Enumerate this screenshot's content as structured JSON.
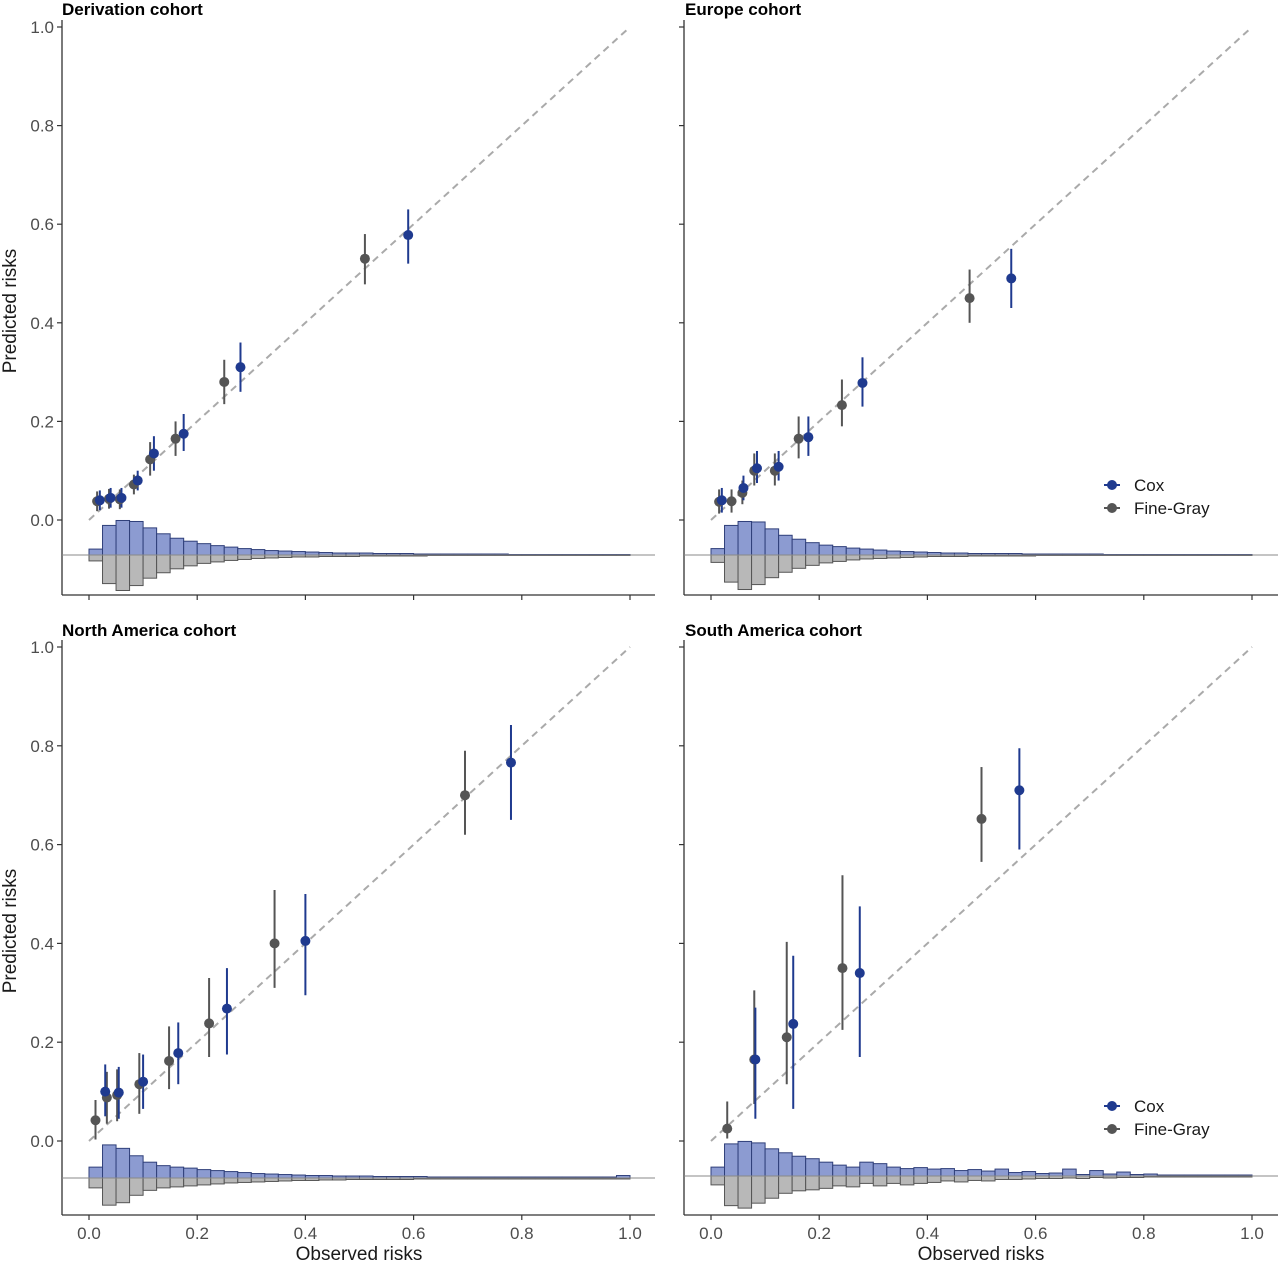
{
  "chart_data": [
    {
      "type": "scatter",
      "title": "Derivation cohort",
      "xlabel": "",
      "ylabel": "Predicted risks",
      "xlim": [
        0,
        1
      ],
      "ylim": [
        -0.1,
        1.0
      ],
      "xticks": [],
      "yticks": [
        "0.0",
        "0.2",
        "0.4",
        "0.6",
        "0.8",
        "1.0"
      ],
      "show_legend": false,
      "series": [
        {
          "name": "Cox",
          "color": "#1f3a8f",
          "x": [
            0.02,
            0.04,
            0.06,
            0.09,
            0.12,
            0.175,
            0.28,
            0.59
          ],
          "y": [
            0.04,
            0.045,
            0.045,
            0.08,
            0.135,
            0.175,
            0.31,
            0.578
          ],
          "lower": [
            0.02,
            0.025,
            0.025,
            0.06,
            0.1,
            0.14,
            0.26,
            0.52
          ],
          "upper": [
            0.06,
            0.065,
            0.065,
            0.1,
            0.17,
            0.215,
            0.36,
            0.63
          ]
        },
        {
          "name": "Fine-Gray",
          "color": "#555555",
          "x": [
            0.015,
            0.037,
            0.057,
            0.083,
            0.113,
            0.16,
            0.25,
            0.51
          ],
          "y": [
            0.038,
            0.043,
            0.042,
            0.072,
            0.123,
            0.165,
            0.28,
            0.53
          ],
          "lower": [
            0.018,
            0.023,
            0.022,
            0.052,
            0.09,
            0.13,
            0.235,
            0.478
          ],
          "upper": [
            0.058,
            0.063,
            0.062,
            0.092,
            0.158,
            0.2,
            0.325,
            0.58
          ]
        }
      ],
      "hist_top": [
        0.012,
        0.06,
        0.07,
        0.068,
        0.055,
        0.043,
        0.034,
        0.028,
        0.023,
        0.019,
        0.016,
        0.013,
        0.011,
        0.009,
        0.008,
        0.007,
        0.006,
        0.005,
        0.004,
        0.004,
        0.004,
        0.003,
        0.003,
        0.003,
        0.002,
        0.002,
        0.002,
        0.002,
        0.002,
        0.002,
        0.002,
        0.001,
        0.001,
        0.001,
        0.001,
        0.001,
        0.001,
        0.001,
        0.001,
        0.001
      ],
      "hist_bottom": [
        0.012,
        0.058,
        0.072,
        0.062,
        0.047,
        0.036,
        0.028,
        0.022,
        0.017,
        0.014,
        0.011,
        0.009,
        0.007,
        0.006,
        0.005,
        0.004,
        0.004,
        0.003,
        0.003,
        0.003,
        0.002,
        0.002,
        0.002,
        0.002,
        0.002,
        0.001,
        0.001,
        0.001,
        0.001,
        0.001,
        0.001,
        0.001,
        0.001,
        0.001,
        0.001,
        0.001,
        0.001,
        0.001,
        0.001,
        0.001
      ]
    },
    {
      "type": "scatter",
      "title": "Europe cohort",
      "xlabel": "",
      "ylabel": "",
      "xlim": [
        0,
        1
      ],
      "ylim": [
        -0.1,
        1.0
      ],
      "xticks": [],
      "yticks": [],
      "show_legend": true,
      "legend_position": "right",
      "series": [
        {
          "name": "Cox",
          "color": "#1f3a8f",
          "x": [
            0.02,
            0.06,
            0.085,
            0.125,
            0.18,
            0.28,
            0.555
          ],
          "y": [
            0.04,
            0.065,
            0.105,
            0.108,
            0.168,
            0.278,
            0.49
          ],
          "lower": [
            0.015,
            0.04,
            0.075,
            0.08,
            0.13,
            0.23,
            0.43
          ],
          "upper": [
            0.065,
            0.09,
            0.14,
            0.14,
            0.21,
            0.33,
            0.55
          ]
        },
        {
          "name": "Fine-Gray",
          "color": "#555555",
          "x": [
            0.015,
            0.038,
            0.058,
            0.08,
            0.118,
            0.162,
            0.242,
            0.478
          ],
          "y": [
            0.037,
            0.038,
            0.055,
            0.1,
            0.1,
            0.165,
            0.233,
            0.45
          ],
          "lower": [
            0.013,
            0.015,
            0.032,
            0.07,
            0.07,
            0.125,
            0.19,
            0.4
          ],
          "upper": [
            0.062,
            0.062,
            0.08,
            0.135,
            0.135,
            0.21,
            0.285,
            0.508
          ]
        }
      ],
      "hist_top": [
        0.013,
        0.06,
        0.068,
        0.067,
        0.053,
        0.04,
        0.032,
        0.025,
        0.02,
        0.017,
        0.014,
        0.012,
        0.01,
        0.008,
        0.007,
        0.006,
        0.005,
        0.004,
        0.004,
        0.003,
        0.003,
        0.003,
        0.003,
        0.002,
        0.002,
        0.002,
        0.002,
        0.002,
        0.002,
        0.001,
        0.001,
        0.001,
        0.001,
        0.001,
        0.001,
        0.001,
        0.001,
        0.001,
        0.001,
        0.001
      ],
      "hist_bottom": [
        0.015,
        0.055,
        0.07,
        0.06,
        0.046,
        0.035,
        0.027,
        0.021,
        0.016,
        0.013,
        0.01,
        0.008,
        0.007,
        0.006,
        0.005,
        0.004,
        0.003,
        0.003,
        0.003,
        0.002,
        0.002,
        0.002,
        0.002,
        0.002,
        0.001,
        0.001,
        0.001,
        0.001,
        0.001,
        0.001,
        0.001,
        0.001,
        0.001,
        0.001,
        0.001,
        0.001,
        0.001,
        0.001,
        0.001,
        0.001
      ]
    },
    {
      "type": "scatter",
      "title": "North America cohort",
      "xlabel": "Observed risks",
      "ylabel": "Predicted risks",
      "xlim": [
        0,
        1
      ],
      "ylim": [
        -0.15,
        1.0
      ],
      "xticks": [
        "0.0",
        "0.2",
        "0.4",
        "0.6",
        "0.8",
        "1.0"
      ],
      "yticks": [
        "0.0",
        "0.2",
        "0.4",
        "0.6",
        "0.8",
        "1.0"
      ],
      "show_legend": false,
      "series": [
        {
          "name": "Cox",
          "color": "#1f3a8f",
          "x": [
            0.03,
            0.055,
            0.1,
            0.165,
            0.255,
            0.4,
            0.78
          ],
          "y": [
            0.1,
            0.098,
            0.12,
            0.178,
            0.268,
            0.405,
            0.766
          ],
          "lower": [
            0.05,
            0.045,
            0.065,
            0.115,
            0.175,
            0.295,
            0.65
          ],
          "upper": [
            0.155,
            0.15,
            0.175,
            0.24,
            0.35,
            0.5,
            0.842
          ]
        },
        {
          "name": "Fine-Gray",
          "color": "#555555",
          "x": [
            0.012,
            0.033,
            0.052,
            0.093,
            0.148,
            0.222,
            0.343,
            0.695
          ],
          "y": [
            0.042,
            0.088,
            0.093,
            0.115,
            0.162,
            0.238,
            0.4,
            0.7
          ],
          "lower": [
            0.003,
            0.035,
            0.04,
            0.055,
            0.105,
            0.17,
            0.31,
            0.62
          ],
          "upper": [
            0.083,
            0.14,
            0.145,
            0.178,
            0.232,
            0.33,
            0.508,
            0.79
          ]
        }
      ],
      "hist_top": [
        0.022,
        0.067,
        0.06,
        0.045,
        0.032,
        0.025,
        0.022,
        0.02,
        0.017,
        0.015,
        0.013,
        0.011,
        0.009,
        0.008,
        0.007,
        0.006,
        0.005,
        0.005,
        0.004,
        0.004,
        0.004,
        0.003,
        0.003,
        0.003,
        0.003,
        0.002,
        0.002,
        0.002,
        0.002,
        0.002,
        0.002,
        0.002,
        0.002,
        0.002,
        0.002,
        0.002,
        0.002,
        0.002,
        0.002,
        0.005
      ],
      "hist_bottom": [
        0.02,
        0.055,
        0.05,
        0.035,
        0.025,
        0.02,
        0.018,
        0.016,
        0.014,
        0.012,
        0.01,
        0.009,
        0.008,
        0.007,
        0.006,
        0.005,
        0.005,
        0.004,
        0.004,
        0.003,
        0.003,
        0.003,
        0.003,
        0.003,
        0.002,
        0.002,
        0.002,
        0.002,
        0.002,
        0.002,
        0.002,
        0.002,
        0.002,
        0.002,
        0.002,
        0.002,
        0.002,
        0.002,
        0.002,
        0.002
      ]
    },
    {
      "type": "scatter",
      "title": "South America cohort",
      "xlabel": "Observed risks",
      "ylabel": "",
      "xlim": [
        0,
        1
      ],
      "ylim": [
        -0.15,
        1.0
      ],
      "xticks": [
        "0.0",
        "0.2",
        "0.4",
        "0.6",
        "0.8",
        "1.0"
      ],
      "yticks": [],
      "show_legend": true,
      "legend_position": "right",
      "series": [
        {
          "name": "Cox",
          "color": "#1f3a8f",
          "x": [
            0.082,
            0.152,
            0.275,
            0.57
          ],
          "y": [
            0.165,
            0.237,
            0.34,
            0.71
          ],
          "lower": [
            0.045,
            0.065,
            0.17,
            0.59
          ],
          "upper": [
            0.27,
            0.375,
            0.475,
            0.795
          ]
        },
        {
          "name": "Fine-Gray",
          "color": "#555555",
          "x": [
            0.03,
            0.08,
            0.14,
            0.243,
            0.5
          ],
          "y": [
            0.025,
            0.165,
            0.21,
            0.35,
            0.652
          ],
          "lower": [
            0.005,
            0.075,
            0.115,
            0.225,
            0.565
          ],
          "upper": [
            0.08,
            0.305,
            0.403,
            0.538,
            0.757
          ]
        }
      ],
      "hist_top": [
        0.018,
        0.065,
        0.07,
        0.067,
        0.055,
        0.047,
        0.04,
        0.035,
        0.028,
        0.022,
        0.018,
        0.028,
        0.025,
        0.018,
        0.015,
        0.017,
        0.014,
        0.015,
        0.011,
        0.013,
        0.01,
        0.014,
        0.007,
        0.009,
        0.005,
        0.006,
        0.014,
        0.003,
        0.011,
        0.004,
        0.008,
        0.003,
        0.004,
        0.002,
        0.002,
        0.002,
        0.002,
        0.002,
        0.002,
        0.002
      ],
      "hist_bottom": [
        0.018,
        0.06,
        0.065,
        0.055,
        0.045,
        0.035,
        0.03,
        0.028,
        0.025,
        0.02,
        0.022,
        0.015,
        0.02,
        0.015,
        0.018,
        0.015,
        0.013,
        0.01,
        0.012,
        0.009,
        0.01,
        0.007,
        0.007,
        0.006,
        0.005,
        0.005,
        0.004,
        0.005,
        0.003,
        0.004,
        0.003,
        0.003,
        0.002,
        0.002,
        0.002,
        0.002,
        0.002,
        0.002,
        0.002,
        0.002
      ]
    }
  ]
}
